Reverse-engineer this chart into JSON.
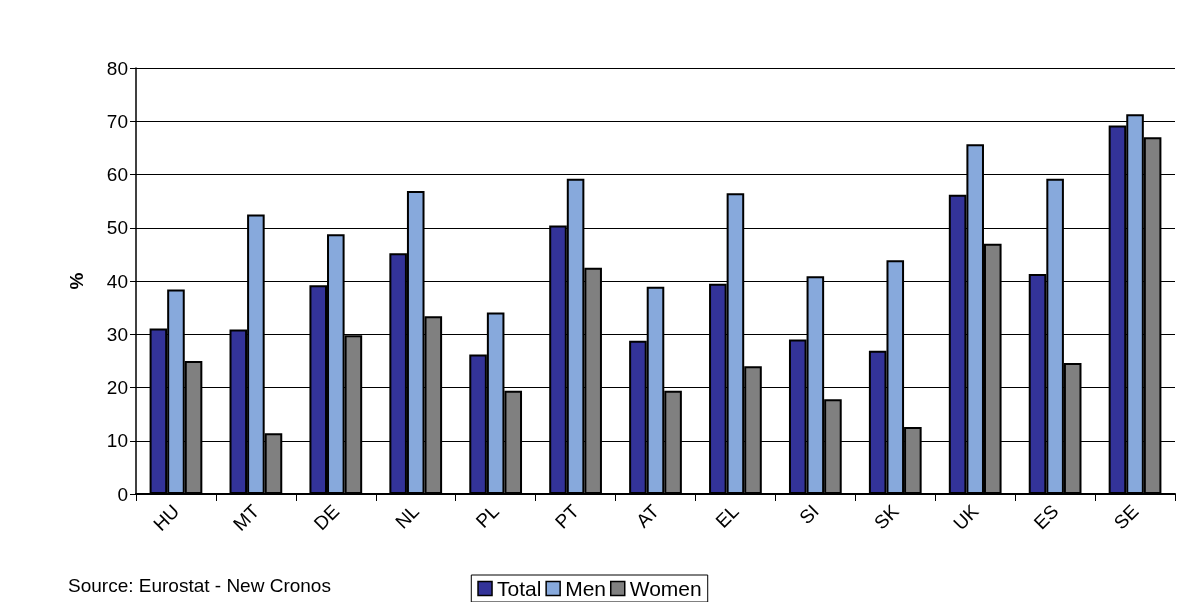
{
  "chart_data": {
    "type": "bar",
    "ylabel": "%",
    "categories": [
      "HU",
      "MT",
      "DE",
      "NL",
      "PL",
      "PT",
      "AT",
      "EL",
      "SI",
      "SK",
      "UK",
      "ES",
      "SE"
    ],
    "series": [
      {
        "name": "Total",
        "color": "#333399",
        "values": [
          31.1,
          30.9,
          39.2,
          45.2,
          26.2,
          50.4,
          28.8,
          39.5,
          29,
          26.9,
          56.2,
          41.3,
          69.2
        ]
      },
      {
        "name": "Men",
        "color": "#87a9dc",
        "values": [
          38.4,
          52.5,
          48.8,
          56.9,
          34.1,
          59.2,
          38.9,
          56.5,
          40.9,
          43.9,
          65.7,
          59.2,
          71.3
        ]
      },
      {
        "name": "Women",
        "color": "#808080",
        "values": [
          25,
          11.4,
          29.8,
          33.4,
          19.4,
          42.5,
          19.4,
          24,
          17.8,
          12.6,
          47,
          24.6,
          67
        ]
      }
    ],
    "ylim": [
      0,
      80
    ],
    "yticks": [
      0,
      10,
      20,
      30,
      40,
      50,
      60,
      70,
      80
    ],
    "grid": "y",
    "legend": "bottom",
    "annotations": [
      "Source: Eurostat - New Cronos"
    ]
  }
}
